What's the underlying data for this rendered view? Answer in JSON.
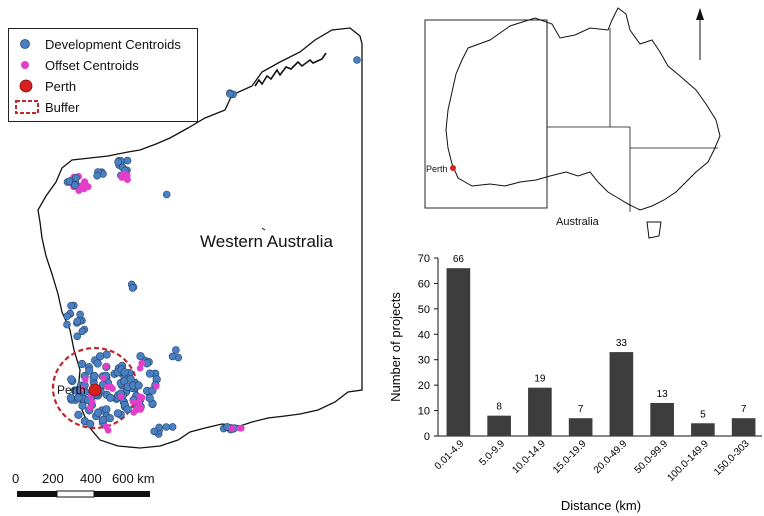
{
  "map": {
    "region_label": "Western Australia",
    "perth_label": "Perth",
    "inset_perth_label": "Perth",
    "inset_country_label": "Australia",
    "north_arrow": "north-arrow-icon",
    "colors": {
      "development": "#4a7fc1",
      "offset": "#e23ec9",
      "perth": "#d71f1f",
      "buffer": "#c0272d"
    }
  },
  "legend": {
    "items": [
      {
        "label": "Development Centroids",
        "icon": "blue-circle-icon"
      },
      {
        "label": "Offset Centroids",
        "icon": "magenta-circle-icon"
      },
      {
        "label": "Perth",
        "icon": "red-circle-icon"
      },
      {
        "label": "Buffer",
        "icon": "dashed-rectangle-icon"
      }
    ]
  },
  "scale": {
    "ticks": [
      "0",
      "200",
      "400",
      "600 km"
    ]
  },
  "chart_data": {
    "type": "bar",
    "categories": [
      "0.01-4.9",
      "5.0-9.9",
      "10.0-14.9",
      "15.0-19.9",
      "20.0-49.9",
      "50.0-99.9",
      "100.0-149.9",
      "150.0-303"
    ],
    "values": [
      66,
      8,
      19,
      7,
      33,
      13,
      5,
      7
    ],
    "data_labels": [
      "66",
      "8",
      "19",
      "7",
      "33",
      "13",
      "5",
      "7"
    ],
    "xlabel": "Distance (km)",
    "ylabel": "Number of projects",
    "ylim": [
      0,
      70
    ],
    "yticks": [
      "0",
      "10",
      "20",
      "30",
      "40",
      "50",
      "60",
      "70"
    ],
    "grid": false,
    "bar_color": "#3d3d3d"
  }
}
